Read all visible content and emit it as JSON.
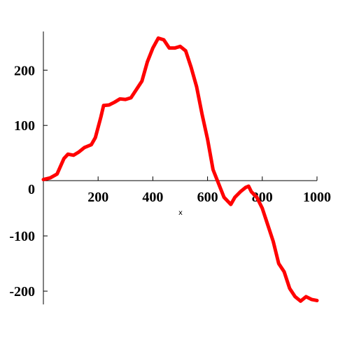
{
  "chart_data": {
    "type": "line",
    "xlabel": "x",
    "x": [
      0,
      25,
      50,
      75,
      90,
      110,
      130,
      150,
      175,
      190,
      210,
      220,
      240,
      260,
      280,
      300,
      320,
      340,
      360,
      380,
      400,
      420,
      440,
      460,
      480,
      500,
      520,
      540,
      560,
      580,
      600,
      620,
      640,
      660,
      685,
      700,
      720,
      740,
      750,
      760,
      780,
      800,
      820,
      840,
      860,
      880,
      900,
      920,
      940,
      960,
      980,
      1000
    ],
    "series": [
      {
        "color": "#ff0000",
        "values": [
          2,
          5,
          12,
          40,
          48,
          46,
          52,
          60,
          65,
          78,
          115,
          136,
          137,
          142,
          148,
          147,
          150,
          165,
          180,
          215,
          240,
          258,
          255,
          240,
          240,
          243,
          235,
          205,
          170,
          120,
          75,
          20,
          -5,
          -30,
          -43,
          -30,
          -20,
          -12,
          -10,
          -20,
          -30,
          -50,
          -80,
          -110,
          -150,
          -165,
          -195,
          -210,
          -218,
          -210,
          -215,
          -217
        ]
      }
    ],
    "xlim": [
      0,
      1000
    ],
    "ylim": [
      -224,
      270
    ],
    "xticks": [
      200,
      400,
      600,
      800,
      1000
    ],
    "yticks": [
      -200,
      -100,
      0,
      100,
      200
    ]
  }
}
